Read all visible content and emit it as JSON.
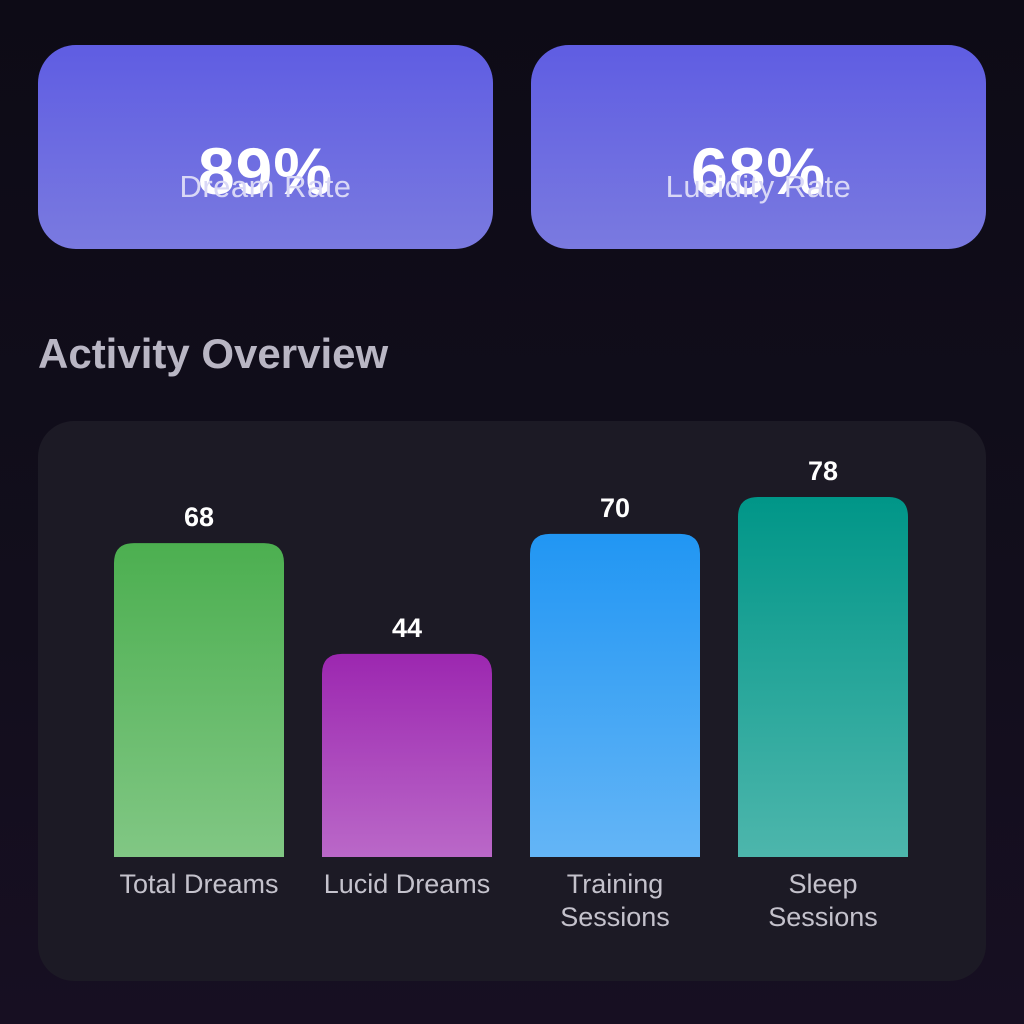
{
  "stats": [
    {
      "value": "89%",
      "label": "Dream Rate"
    },
    {
      "value": "68%",
      "label": "Lucidity Rate"
    }
  ],
  "section_title": "Activity Overview",
  "colors": {
    "total": [
      "#4caf50",
      "#81c784"
    ],
    "lucid": [
      "#9c27b0",
      "#ba68c8"
    ],
    "training": [
      "#2196f3",
      "#64b5f6"
    ],
    "sleep": [
      "#009688",
      "#4db6ac"
    ]
  },
  "chart_data": {
    "type": "bar",
    "categories": [
      "Total Dreams",
      "Lucid Dreams",
      "Training Sessions",
      "Sleep Sessions"
    ],
    "category_lines": [
      [
        "Total Dreams"
      ],
      [
        "Lucid Dreams"
      ],
      [
        "Training",
        "Sessions"
      ],
      [
        "Sleep",
        "Sessions"
      ]
    ],
    "values": [
      68,
      44,
      70,
      78
    ],
    "title": "",
    "xlabel": "",
    "ylabel": "",
    "ylim": [
      0,
      78
    ]
  }
}
